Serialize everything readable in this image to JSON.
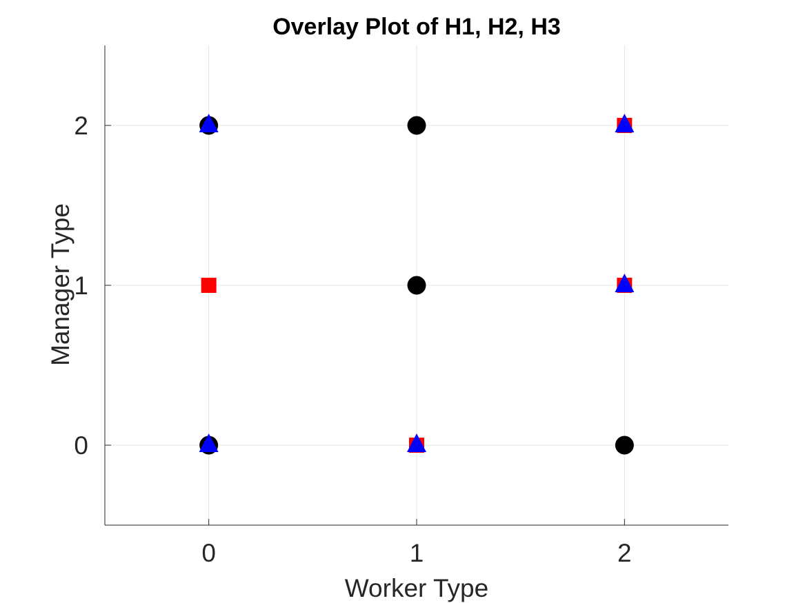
{
  "chart_data": {
    "type": "scatter",
    "title": "Overlay Plot of H1, H2, H3",
    "xlabel": "Worker Type",
    "ylabel": "Manager Type",
    "xlim": [
      -0.5,
      2.5
    ],
    "ylim": [
      -0.5,
      2.5
    ],
    "xticks": [
      0,
      1,
      2
    ],
    "yticks": [
      0,
      1,
      2
    ],
    "xtick_labels": [
      "0",
      "1",
      "2"
    ],
    "ytick_labels": [
      "0",
      "1",
      "2"
    ],
    "grid": true,
    "series": [
      {
        "marker": "circle",
        "color": "#000000",
        "points": [
          [
            0,
            0
          ],
          [
            0,
            2
          ],
          [
            1,
            1
          ],
          [
            1,
            2
          ],
          [
            2,
            0
          ]
        ]
      },
      {
        "marker": "square",
        "color": "#ff0000",
        "points": [
          [
            0,
            1
          ],
          [
            1,
            0
          ],
          [
            2,
            1
          ],
          [
            2,
            2
          ]
        ]
      },
      {
        "marker": "triangle",
        "color": "#0000ff",
        "points": [
          [
            0,
            0
          ],
          [
            0,
            2
          ],
          [
            1,
            0
          ],
          [
            2,
            1
          ],
          [
            2,
            2
          ]
        ]
      }
    ]
  }
}
